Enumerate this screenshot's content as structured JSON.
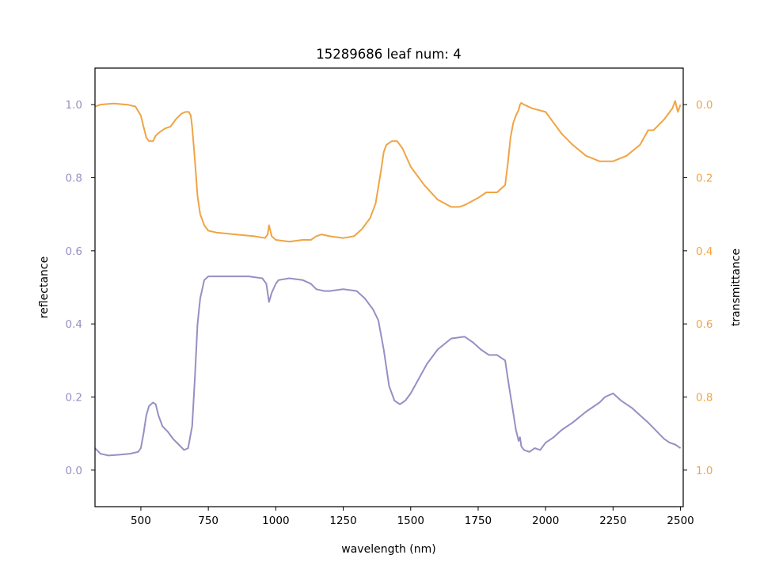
{
  "chart_data": {
    "type": "line",
    "title": "15289686 leaf num: 4",
    "xlabel": "wavelength (nm)",
    "xlim": [
      330,
      2510
    ],
    "x_ticks": [
      500,
      750,
      1000,
      1250,
      1500,
      1750,
      2000,
      2250,
      2500
    ],
    "left_axis": {
      "label": "reflectance",
      "color": "#9590c3",
      "ylim": [
        -0.1,
        1.1
      ],
      "ticks": [
        "0.0",
        "0.2",
        "0.4",
        "0.6",
        "0.8",
        "1.0"
      ]
    },
    "right_axis": {
      "label": "transmittance",
      "color": "#f0a444",
      "ylim": [
        1.1,
        -0.1
      ],
      "inverted": true,
      "ticks": [
        "0.0",
        "0.2",
        "0.4",
        "0.6",
        "0.8",
        "1.0"
      ]
    },
    "series": [
      {
        "axis": "left",
        "color": "#9590c3",
        "x": [
          330,
          350,
          380,
          420,
          460,
          490,
          500,
          510,
          520,
          530,
          545,
          555,
          565,
          580,
          600,
          620,
          640,
          660,
          675,
          690,
          700,
          710,
          720,
          735,
          750,
          770,
          800,
          850,
          900,
          950,
          965,
          975,
          985,
          1000,
          1010,
          1050,
          1100,
          1130,
          1150,
          1180,
          1200,
          1250,
          1300,
          1330,
          1360,
          1380,
          1400,
          1420,
          1440,
          1460,
          1480,
          1500,
          1530,
          1560,
          1600,
          1650,
          1700,
          1730,
          1760,
          1790,
          1820,
          1850,
          1860,
          1875,
          1890,
          1900,
          1905,
          1910,
          1920,
          1940,
          1960,
          1980,
          2000,
          2030,
          2060,
          2100,
          2150,
          2200,
          2220,
          2250,
          2280,
          2320,
          2350,
          2380,
          2400,
          2420,
          2440,
          2460,
          2480,
          2500
        ],
        "y": [
          0.06,
          0.045,
          0.04,
          0.042,
          0.045,
          0.05,
          0.06,
          0.1,
          0.15,
          0.175,
          0.185,
          0.18,
          0.15,
          0.12,
          0.105,
          0.085,
          0.07,
          0.055,
          0.06,
          0.12,
          0.25,
          0.4,
          0.47,
          0.52,
          0.53,
          0.53,
          0.53,
          0.53,
          0.53,
          0.525,
          0.51,
          0.46,
          0.485,
          0.51,
          0.52,
          0.525,
          0.52,
          0.51,
          0.495,
          0.49,
          0.49,
          0.495,
          0.49,
          0.47,
          0.44,
          0.41,
          0.33,
          0.23,
          0.19,
          0.18,
          0.19,
          0.21,
          0.25,
          0.29,
          0.33,
          0.36,
          0.365,
          0.35,
          0.33,
          0.315,
          0.315,
          0.3,
          0.25,
          0.18,
          0.11,
          0.08,
          0.09,
          0.065,
          0.055,
          0.05,
          0.06,
          0.055,
          0.075,
          0.09,
          0.11,
          0.13,
          0.16,
          0.185,
          0.2,
          0.21,
          0.19,
          0.17,
          0.15,
          0.13,
          0.115,
          0.1,
          0.085,
          0.075,
          0.07,
          0.06
        ]
      },
      {
        "axis": "right",
        "color": "#f0a444",
        "x": [
          330,
          350,
          380,
          400,
          450,
          480,
          500,
          510,
          520,
          530,
          545,
          555,
          570,
          590,
          610,
          630,
          650,
          665,
          678,
          685,
          690,
          700,
          710,
          720,
          735,
          750,
          780,
          850,
          920,
          960,
          970,
          975,
          985,
          1000,
          1050,
          1100,
          1130,
          1150,
          1170,
          1200,
          1250,
          1290,
          1320,
          1350,
          1370,
          1390,
          1400,
          1410,
          1430,
          1450,
          1470,
          1500,
          1550,
          1600,
          1650,
          1680,
          1700,
          1750,
          1780,
          1820,
          1850,
          1860,
          1870,
          1880,
          1890,
          1900,
          1905,
          1910,
          1920,
          1950,
          2000,
          2030,
          2060,
          2100,
          2150,
          2200,
          2250,
          2300,
          2350,
          2380,
          2400,
          2420,
          2440,
          2460,
          2470,
          2480,
          2490,
          2500
        ],
        "y": [
          0.005,
          0.0,
          -0.002,
          -0.003,
          0.0,
          0.005,
          0.03,
          0.06,
          0.09,
          0.1,
          0.1,
          0.085,
          0.075,
          0.065,
          0.06,
          0.04,
          0.025,
          0.02,
          0.02,
          0.03,
          0.06,
          0.15,
          0.25,
          0.3,
          0.33,
          0.345,
          0.35,
          0.355,
          0.36,
          0.365,
          0.355,
          0.33,
          0.36,
          0.37,
          0.375,
          0.37,
          0.37,
          0.36,
          0.355,
          0.36,
          0.365,
          0.36,
          0.34,
          0.31,
          0.27,
          0.18,
          0.13,
          0.11,
          0.1,
          0.1,
          0.12,
          0.17,
          0.22,
          0.26,
          0.28,
          0.28,
          0.275,
          0.255,
          0.24,
          0.24,
          0.22,
          0.16,
          0.09,
          0.05,
          0.03,
          0.015,
          0.0,
          -0.005,
          0.0,
          0.01,
          0.02,
          0.05,
          0.08,
          0.11,
          0.14,
          0.155,
          0.155,
          0.14,
          0.11,
          0.07,
          0.07,
          0.055,
          0.04,
          0.02,
          0.01,
          -0.01,
          0.02,
          0.0
        ]
      }
    ]
  }
}
